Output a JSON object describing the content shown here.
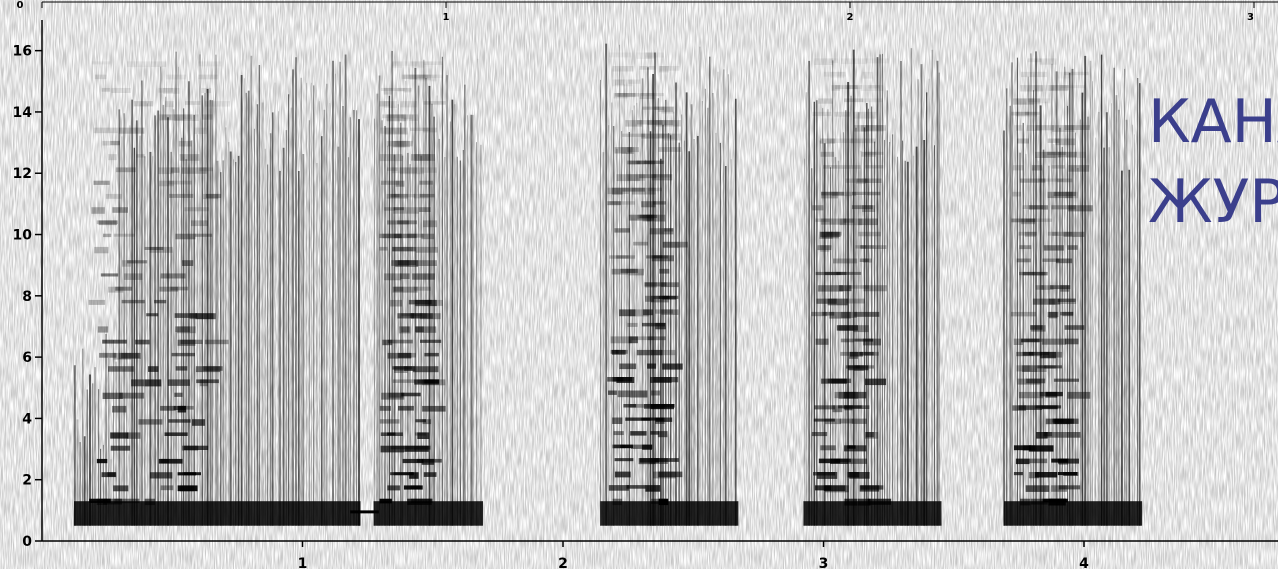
{
  "chart_data": {
    "type": "heatmap",
    "title": "",
    "xlabel": "",
    "ylabel": "",
    "xlim": [
      0,
      4.6
    ],
    "ylim": [
      0,
      17
    ],
    "x_ticks": [
      "1",
      "2",
      "3",
      "4"
    ],
    "y_ticks": [
      "0",
      "2",
      "4",
      "6",
      "8",
      "10",
      "12",
      "14",
      "16"
    ],
    "top_axis_ticks": [
      "0",
      "1",
      "2",
      "3"
    ],
    "grid": false,
    "colors": {
      "ink": "#000000",
      "overlay_text": "#3b3f8c"
    },
    "segments": [
      {
        "x_start": 0.1,
        "x_end": 1.2,
        "max_freq": 16,
        "low_band": [
          0.5,
          1.3
        ]
      },
      {
        "x_start": 1.25,
        "x_end": 1.67,
        "max_freq": 16,
        "low_band": [
          0.5,
          1.3
        ]
      },
      {
        "x_start": 2.12,
        "x_end": 2.65,
        "max_freq": 16.3,
        "low_band": [
          0.5,
          1.3
        ]
      },
      {
        "x_start": 2.9,
        "x_end": 3.43,
        "max_freq": 16.1,
        "low_band": [
          0.5,
          1.3
        ]
      },
      {
        "x_start": 3.67,
        "x_end": 4.2,
        "max_freq": 16.1,
        "low_band": [
          0.5,
          1.3
        ]
      }
    ]
  },
  "overlay_text": {
    "line1": "КАНА",
    "line2": "ЖУР"
  }
}
